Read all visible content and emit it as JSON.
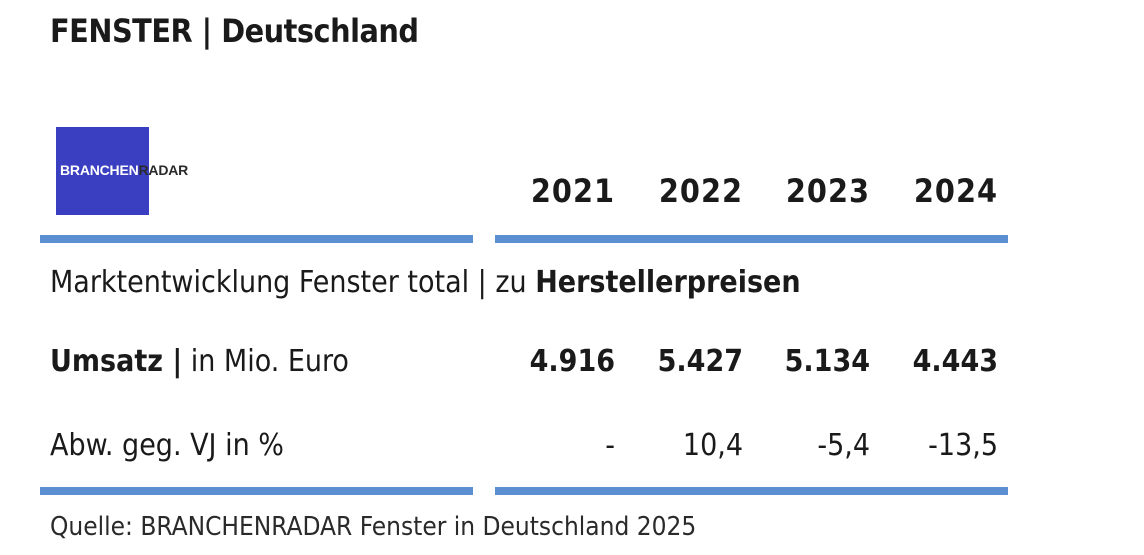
{
  "header": {
    "title": "FENSTER | Deutschland"
  },
  "logo": {
    "part1": "BRANCHEN",
    "part2": "RADAR"
  },
  "table": {
    "subtitle_regular": "Marktentwicklung Fenster total | zu ",
    "subtitle_bold": "Herstellerpreisen",
    "years": [
      "2021",
      "2022",
      "2023",
      "2024"
    ],
    "rows": [
      {
        "label_bold": "Umsatz |",
        "label_regular": " in Mio. Euro",
        "values": [
          "4.916",
          "5.427",
          "5.134",
          "4.443"
        ]
      },
      {
        "label_bold": "",
        "label_regular": "Abw. geg. VJ in %",
        "values": [
          "-",
          "10,4",
          "-5,4",
          "-13,5"
        ]
      }
    ]
  },
  "source": "Quelle: BRANCHENRADAR Fenster in Deutschland 2025",
  "colors": {
    "rule": "#5b8fd1",
    "logo_bg": "#3a3fc2"
  },
  "chart_data": {
    "type": "table",
    "title": "FENSTER | Deutschland",
    "subtitle": "Marktentwicklung Fenster total | zu Herstellerpreisen",
    "columns": [
      "2021",
      "2022",
      "2023",
      "2024"
    ],
    "rows": [
      {
        "label": "Umsatz | in Mio. Euro",
        "values": [
          4916,
          5427,
          5134,
          4443
        ]
      },
      {
        "label": "Abw. geg. VJ in %",
        "values": [
          null,
          10.4,
          -5.4,
          -13.5
        ]
      }
    ]
  }
}
